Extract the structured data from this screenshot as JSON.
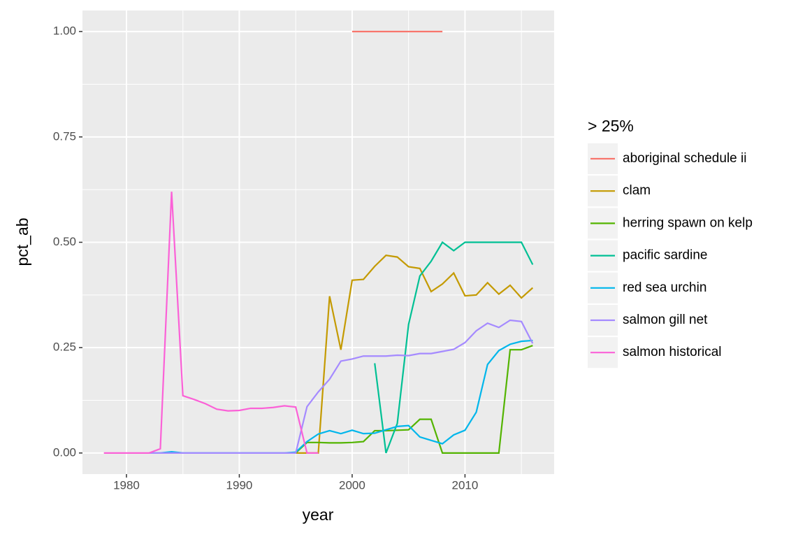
{
  "chart_data": {
    "type": "line",
    "x_label": "year",
    "y_label": "pct_ab",
    "legend_title": "> 25%",
    "x": [
      1978,
      1979,
      1980,
      1981,
      1982,
      1983,
      1984,
      1985,
      1986,
      1987,
      1988,
      1989,
      1990,
      1991,
      1992,
      1993,
      1994,
      1995,
      1996,
      1997,
      1998,
      1999,
      2000,
      2001,
      2002,
      2003,
      2004,
      2005,
      2006,
      2007,
      2008,
      2009,
      2010,
      2011,
      2012,
      2013,
      2014,
      2015,
      2016
    ],
    "series": [
      {
        "name": "aboriginal schedule ii",
        "color": "#F8766D",
        "values": [
          null,
          null,
          null,
          null,
          null,
          null,
          null,
          null,
          null,
          null,
          null,
          null,
          null,
          null,
          null,
          null,
          null,
          null,
          null,
          null,
          null,
          null,
          1.0,
          1.0,
          1.0,
          1.0,
          1.0,
          1.0,
          1.0,
          1.0,
          1.0,
          null,
          null,
          null,
          null,
          null,
          null,
          null,
          null
        ]
      },
      {
        "name": "clam",
        "color": "#C49A00",
        "values": [
          null,
          null,
          null,
          null,
          null,
          null,
          null,
          null,
          null,
          null,
          null,
          null,
          null,
          null,
          null,
          null,
          null,
          0,
          0,
          0,
          0.372,
          0.245,
          0.41,
          0.412,
          0.443,
          0.469,
          0.465,
          0.442,
          0.438,
          0.383,
          0.401,
          0.427,
          0.373,
          0.375,
          0.404,
          0.377,
          0.398,
          0.368,
          0.392
        ]
      },
      {
        "name": "herring spawn on kelp",
        "color": "#53B400",
        "values": [
          null,
          null,
          null,
          null,
          null,
          null,
          null,
          null,
          null,
          null,
          null,
          null,
          null,
          null,
          null,
          null,
          null,
          0,
          0.025,
          0.025,
          0.024,
          0.024,
          0.025,
          0.027,
          0.053,
          0.053,
          0.054,
          0.055,
          0.08,
          0.08,
          0,
          0,
          0,
          0,
          0,
          0,
          0.245,
          0.245,
          0.255
        ]
      },
      {
        "name": "pacific sardine",
        "color": "#00C094",
        "values": [
          null,
          null,
          null,
          null,
          null,
          null,
          null,
          null,
          null,
          null,
          null,
          null,
          null,
          null,
          null,
          null,
          null,
          null,
          null,
          null,
          null,
          null,
          null,
          null,
          0.213,
          0,
          0.07,
          0.305,
          0.42,
          0.455,
          0.5,
          0.48,
          0.5,
          0.5,
          0.5,
          0.5,
          0.5,
          0.5,
          0.447
        ]
      },
      {
        "name": "red sea urchin",
        "color": "#00B6EB",
        "values": [
          null,
          null,
          null,
          null,
          0,
          0,
          0.003,
          0,
          0,
          0,
          0,
          0,
          0,
          0,
          0,
          0,
          0,
          0.002,
          0.027,
          0.045,
          0.053,
          0.046,
          0.054,
          0.046,
          0.047,
          0.055,
          0.063,
          0.065,
          0.038,
          0.03,
          0.022,
          0.043,
          0.054,
          0.097,
          0.21,
          0.243,
          0.258,
          0.265,
          0.267
        ]
      },
      {
        "name": "salmon gill net",
        "color": "#A58AFF",
        "values": [
          null,
          null,
          null,
          null,
          0,
          0,
          0,
          0,
          0,
          0,
          0,
          0,
          0,
          0,
          0,
          0,
          0,
          0,
          0.11,
          0.145,
          0.175,
          0.218,
          0.223,
          0.23,
          0.23,
          0.23,
          0.232,
          0.231,
          0.236,
          0.236,
          0.241,
          0.246,
          0.262,
          0.29,
          0.308,
          0.298,
          0.315,
          0.312,
          0.26
        ]
      },
      {
        "name": "salmon historical",
        "color": "#FB61D7",
        "values": [
          0,
          0,
          0,
          0,
          0,
          0.01,
          0.62,
          0.136,
          0.127,
          0.117,
          0.104,
          0.1,
          0.101,
          0.106,
          0.106,
          0.108,
          0.112,
          0.109,
          0,
          0,
          null,
          null,
          null,
          null,
          null,
          null,
          null,
          null,
          null,
          null,
          null,
          null,
          null,
          null,
          null,
          null,
          null,
          null,
          null
        ]
      }
    ],
    "xlim": [
      1976.1,
      2017.9
    ],
    "xticks": [
      1980,
      1990,
      2000,
      2010
    ],
    "ylim": [
      -0.05,
      1.05
    ],
    "yticks": [
      {
        "value": 0,
        "label": "0.00"
      },
      {
        "value": 0.25,
        "label": "0.25"
      },
      {
        "value": 0.5,
        "label": "0.50"
      },
      {
        "value": 0.75,
        "label": "0.75"
      },
      {
        "value": 1.0,
        "label": "1.00"
      }
    ],
    "grid": true
  }
}
